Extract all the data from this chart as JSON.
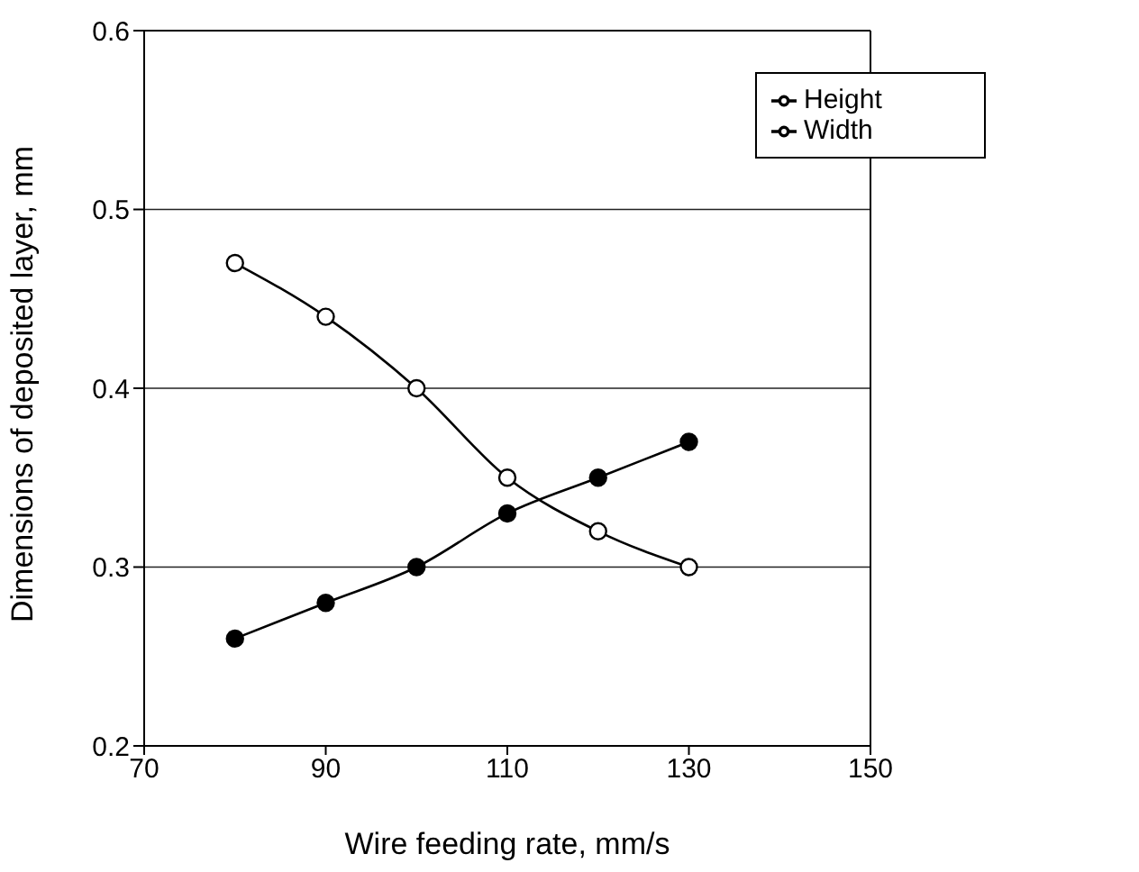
{
  "chart_data": {
    "type": "line",
    "xlabel": "Wire feeding rate, mm/s",
    "ylabel": "Dimensions of deposited layer, mm",
    "x": [
      80,
      90,
      100,
      110,
      120,
      130
    ],
    "series": [
      {
        "name": "Height",
        "color": "#000000",
        "values": [
          0.26,
          0.28,
          0.3,
          0.33,
          0.35,
          0.37
        ]
      },
      {
        "name": "Width",
        "color": "#000000",
        "values": [
          0.47,
          0.44,
          0.4,
          0.35,
          0.32,
          0.3
        ]
      }
    ],
    "xlim": [
      70,
      150
    ],
    "xticks": [
      70,
      90,
      110,
      130,
      150
    ],
    "ylim": [
      0.2,
      0.6
    ],
    "yticks": [
      0.2,
      0.3,
      0.4,
      0.5,
      0.6
    ],
    "grid": "y",
    "legend": "top right",
    "marker": "circle",
    "line_style": "solid"
  }
}
